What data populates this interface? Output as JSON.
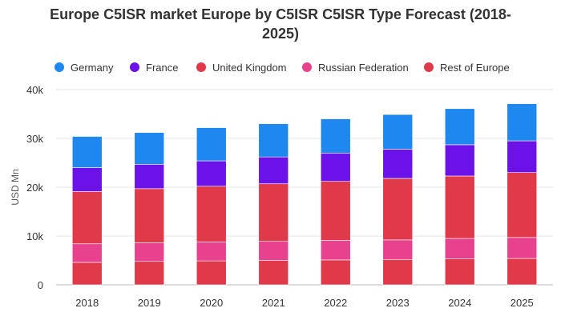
{
  "chart_data": {
    "type": "bar",
    "stacked": true,
    "title_line1": "Europe C5ISR market Europe by C5ISR C5ISR Type Forecast (2018-",
    "title_line2": "2025)",
    "ylabel": "USD Mn",
    "ylim": [
      0,
      40000
    ],
    "yticks": [
      0,
      10000,
      20000,
      30000,
      40000
    ],
    "ytick_labels": [
      "0",
      "10k",
      "20k",
      "30k",
      "40k"
    ],
    "categories": [
      "2018",
      "2019",
      "2020",
      "2021",
      "2022",
      "2023",
      "2024",
      "2025"
    ],
    "series": [
      {
        "name": "Rest of Europe",
        "color": "#e0394a",
        "values": [
          4600,
          4800,
          4900,
          5000,
          5100,
          5200,
          5300,
          5400
        ]
      },
      {
        "name": "Russian Federation",
        "color": "#e8418e",
        "values": [
          3800,
          3800,
          3900,
          3900,
          4000,
          4000,
          4200,
          4300
        ]
      },
      {
        "name": "United Kingdom",
        "color": "#e0394a",
        "values": [
          10700,
          11100,
          11400,
          11800,
          12100,
          12600,
          12800,
          13300
        ]
      },
      {
        "name": "France",
        "color": "#6a12e8",
        "values": [
          4900,
          5000,
          5200,
          5500,
          5800,
          6000,
          6400,
          6500
        ]
      },
      {
        "name": "Germany",
        "color": "#1e88f0",
        "values": [
          6400,
          6500,
          6800,
          6800,
          7000,
          7100,
          7400,
          7600
        ]
      }
    ],
    "legend_order": [
      "Germany",
      "France",
      "United Kingdom",
      "Russian Federation",
      "Rest of Europe"
    ],
    "legend_position": "top",
    "grid": true
  }
}
